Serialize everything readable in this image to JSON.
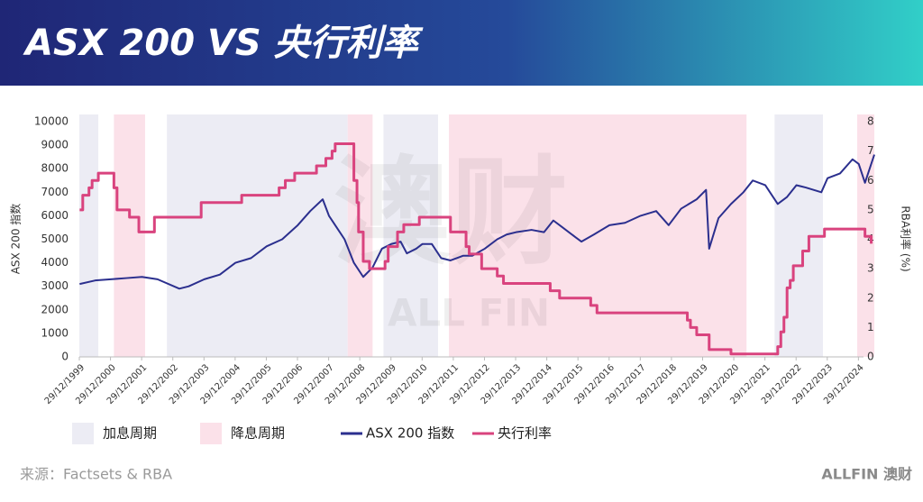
{
  "chart_data": {
    "type": "line",
    "title": "ASX 200 VS 央行利率",
    "y_label": "ASX 200 指数",
    "y2_label": "RBA利率 (%)",
    "source": "来源：Factsets & RBA",
    "logo": "ALLFIN 澳财",
    "watermark": [
      "澳财",
      "ALL FIN"
    ],
    "xlim": [
      1999.99,
      2025.5
    ],
    "xticks": [
      {
        "value": 1999.99,
        "label": "29/12/1999"
      },
      {
        "value": 2000.99,
        "label": "29/12/2000"
      },
      {
        "value": 2001.99,
        "label": "29/12/2001"
      },
      {
        "value": 2002.99,
        "label": "29/12/2002"
      },
      {
        "value": 2003.99,
        "label": "29/12/2003"
      },
      {
        "value": 2004.99,
        "label": "29/12/2004"
      },
      {
        "value": 2005.99,
        "label": "29/12/2005"
      },
      {
        "value": 2006.99,
        "label": "29/12/2006"
      },
      {
        "value": 2007.99,
        "label": "29/12/2007"
      },
      {
        "value": 2008.99,
        "label": "29/12/2008"
      },
      {
        "value": 2009.99,
        "label": "29/12/2009"
      },
      {
        "value": 2010.99,
        "label": "29/12/2010"
      },
      {
        "value": 2011.99,
        "label": "29/12/2011"
      },
      {
        "value": 2012.99,
        "label": "29/12/2012"
      },
      {
        "value": 2013.99,
        "label": "29/12/2013"
      },
      {
        "value": 2014.99,
        "label": "29/12/2014"
      },
      {
        "value": 2015.99,
        "label": "29/12/2015"
      },
      {
        "value": 2016.99,
        "label": "29/12/2016"
      },
      {
        "value": 2017.99,
        "label": "29/12/2017"
      },
      {
        "value": 2018.99,
        "label": "29/12/2018"
      },
      {
        "value": 2019.99,
        "label": "29/12/2019"
      },
      {
        "value": 2020.99,
        "label": "29/12/2020"
      },
      {
        "value": 2021.99,
        "label": "29/12/2021"
      },
      {
        "value": 2022.99,
        "label": "29/12/2022"
      },
      {
        "value": 2023.99,
        "label": "29/12/2023"
      },
      {
        "value": 2024.99,
        "label": "29/12/2024"
      }
    ],
    "ylim": [
      0,
      10000
    ],
    "yticks": [
      0,
      1000,
      2000,
      3000,
      4000,
      5000,
      6000,
      7000,
      8000,
      9000,
      10000
    ],
    "y2lim": [
      0,
      8
    ],
    "y2ticks": [
      0,
      1,
      2,
      3,
      4,
      5,
      6,
      7,
      8
    ],
    "periods": [
      {
        "name": "加息周期",
        "color": "#ececf4",
        "ranges": [
          [
            1999.99,
            2000.6
          ],
          [
            2002.8,
            2008.6
          ],
          [
            2009.75,
            2011.5
          ],
          [
            2022.3,
            2023.85
          ]
        ]
      },
      {
        "name": "降息周期",
        "color": "#fbe1e9",
        "ranges": [
          [
            2001.1,
            2002.1
          ],
          [
            2008.6,
            2009.4
          ],
          [
            2011.85,
            2021.4
          ],
          [
            2024.95,
            2025.5
          ]
        ]
      }
    ],
    "series": [
      {
        "name": "ASX 200 指数",
        "color": "#2b2f8e",
        "axis": "y",
        "x": [
          2000.0,
          2000.5,
          2001.0,
          2001.5,
          2002.0,
          2002.5,
          2003.2,
          2003.5,
          2004.0,
          2004.5,
          2005.0,
          2005.5,
          2006.0,
          2006.5,
          2007.0,
          2007.4,
          2007.8,
          2008.0,
          2008.3,
          2008.5,
          2008.8,
          2009.1,
          2009.4,
          2009.7,
          2010.0,
          2010.3,
          2010.5,
          2010.8,
          2011.0,
          2011.3,
          2011.6,
          2011.9,
          2012.3,
          2012.6,
          2013.0,
          2013.4,
          2013.7,
          2014.0,
          2014.5,
          2014.9,
          2015.2,
          2015.5,
          2015.9,
          2016.1,
          2016.5,
          2017.0,
          2017.5,
          2018.0,
          2018.5,
          2018.9,
          2019.3,
          2019.8,
          2020.1,
          2020.2,
          2020.5,
          2020.9,
          2021.3,
          2021.6,
          2022.0,
          2022.4,
          2022.7,
          2023.0,
          2023.3,
          2023.8,
          2024.0,
          2024.4,
          2024.8,
          2025.0,
          2025.2,
          2025.4,
          2025.5
        ],
        "values": [
          3100,
          3250,
          3300,
          3350,
          3400,
          3300,
          2900,
          3000,
          3300,
          3500,
          4000,
          4200,
          4700,
          5000,
          5600,
          6200,
          6700,
          6000,
          5400,
          5000,
          4000,
          3400,
          3800,
          4600,
          4800,
          4900,
          4400,
          4600,
          4800,
          4800,
          4200,
          4100,
          4300,
          4300,
          4600,
          5000,
          5200,
          5300,
          5400,
          5300,
          5800,
          5500,
          5100,
          4900,
          5200,
          5600,
          5700,
          6000,
          6200,
          5600,
          6300,
          6700,
          7100,
          4600,
          5900,
          6500,
          7000,
          7500,
          7300,
          6500,
          6800,
          7300,
          7200,
          7000,
          7600,
          7800,
          8400,
          8200,
          7400,
          8200,
          8600
        ]
      },
      {
        "name": "央行利率",
        "color": "#d9437e",
        "axis": "y2",
        "step": true,
        "x": [
          2000.0,
          2000.1,
          2000.3,
          2000.4,
          2000.6,
          2001.1,
          2001.2,
          2001.6,
          2001.9,
          2002.4,
          2003.9,
          2005.2,
          2006.4,
          2006.6,
          2006.9,
          2007.6,
          2007.9,
          2008.1,
          2008.2,
          2008.8,
          2008.9,
          2008.95,
          2009.1,
          2009.3,
          2009.8,
          2009.9,
          2010.2,
          2010.4,
          2010.9,
          2011.9,
          2012.4,
          2012.5,
          2012.9,
          2013.4,
          2013.6,
          2015.1,
          2015.4,
          2016.4,
          2016.6,
          2019.5,
          2019.6,
          2019.8,
          2020.2,
          2020.9,
          2022.4,
          2022.5,
          2022.6,
          2022.7,
          2022.8,
          2022.9,
          2023.2,
          2023.4,
          2023.9,
          2025.2,
          2025.4
        ],
        "values": [
          5.0,
          5.5,
          5.75,
          6.0,
          6.25,
          5.75,
          5.0,
          4.75,
          4.25,
          4.75,
          5.25,
          5.5,
          5.75,
          6.0,
          6.25,
          6.5,
          6.75,
          7.0,
          7.25,
          6.0,
          5.25,
          4.25,
          3.25,
          3.0,
          3.25,
          3.75,
          4.25,
          4.5,
          4.75,
          4.25,
          3.75,
          3.5,
          3.0,
          2.75,
          2.5,
          2.25,
          2.0,
          1.75,
          1.5,
          1.25,
          1.0,
          0.75,
          0.25,
          0.1,
          0.35,
          0.85,
          1.35,
          2.35,
          2.6,
          3.1,
          3.6,
          4.1,
          4.35,
          4.1,
          3.85
        ]
      }
    ]
  }
}
